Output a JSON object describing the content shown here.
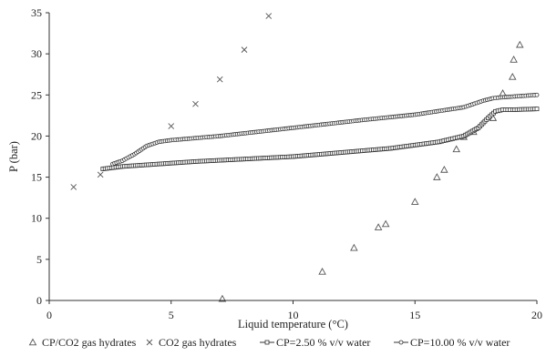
{
  "chart_data": {
    "type": "scatter",
    "title": "",
    "xlabel": "Liquid temperature (°C)",
    "ylabel": "P (bar)",
    "xlim": [
      0,
      20
    ],
    "ylim": [
      0,
      35
    ],
    "x_ticks": [
      0,
      5,
      10,
      15,
      20
    ],
    "y_ticks": [
      0,
      5,
      10,
      15,
      20,
      25,
      30,
      35
    ],
    "grid": false,
    "legend_position": "bottom",
    "series": [
      {
        "name": "CP/CO2 gas hydrates",
        "marker": "triangle",
        "color": "#555555",
        "x": [
          7.1,
          11.2,
          12.5,
          13.5,
          13.8,
          15.0,
          15.9,
          16.2,
          16.7,
          17.0,
          17.4,
          18.2,
          18.6,
          19.0,
          19.05,
          19.3
        ],
        "y": [
          0.2,
          3.5,
          6.4,
          8.9,
          9.3,
          12.0,
          15.0,
          15.9,
          18.4,
          19.9,
          20.5,
          22.2,
          25.2,
          27.2,
          29.3,
          31.1
        ]
      },
      {
        "name": "CO2 gas hydrates",
        "marker": "x",
        "color": "#555555",
        "x": [
          1.0,
          2.1,
          5.0,
          6.0,
          7.0,
          8.0,
          9.0
        ],
        "y": [
          13.8,
          15.3,
          21.2,
          23.9,
          26.9,
          30.5,
          34.6
        ]
      },
      {
        "name": "CP=2.50 % v/v water",
        "marker": "square-line",
        "color": "#333333",
        "x": [
          2.2,
          3.0,
          6.0,
          10.0,
          14.0,
          16.0,
          17.0,
          17.6,
          18.0,
          18.3,
          18.6,
          19.0,
          20.0
        ],
        "y": [
          16.0,
          16.3,
          16.9,
          17.5,
          18.5,
          19.3,
          20.0,
          21.0,
          22.2,
          23.0,
          23.2,
          23.2,
          23.3
        ]
      },
      {
        "name": "CP=10.00 % v/v water",
        "marker": "circle-line",
        "color": "#333333",
        "x": [
          2.6,
          3.0,
          3.5,
          4.0,
          4.5,
          5.0,
          7.0,
          10.0,
          13.0,
          15.0,
          17.0,
          17.8,
          18.2,
          18.5,
          19.0,
          20.0
        ],
        "y": [
          16.6,
          17.0,
          17.8,
          18.8,
          19.3,
          19.5,
          20.0,
          21.0,
          22.0,
          22.6,
          23.5,
          24.3,
          24.6,
          24.7,
          24.8,
          25.0
        ]
      }
    ]
  }
}
